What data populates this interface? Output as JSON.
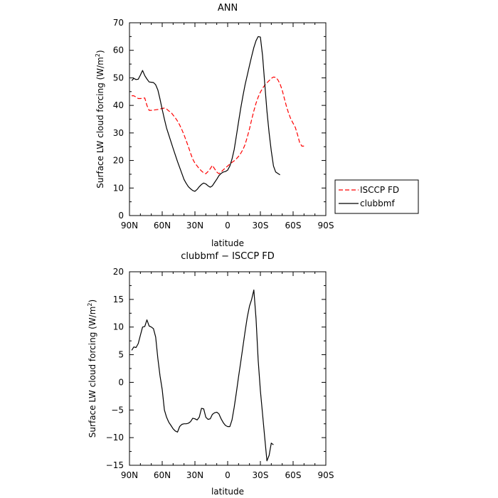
{
  "chart_data": [
    {
      "type": "line",
      "title": "ANN",
      "xlabel": "latitude",
      "ylabel": "Surface LW cloud forcing (W/m",
      "ylabel_sup": "2",
      "ylabel_close": ")",
      "xlim": [
        90,
        -90
      ],
      "ylim": [
        0,
        70
      ],
      "xticks": [
        90,
        60,
        30,
        0,
        -30,
        -60,
        -90
      ],
      "xtick_labels": [
        "90N",
        "60N",
        "30N",
        "0",
        "30S",
        "60S",
        "90S"
      ],
      "yticks": [
        0,
        10,
        20,
        30,
        40,
        50,
        60,
        70
      ],
      "ytick_labels": [
        "0",
        "10",
        "20",
        "30",
        "40",
        "50",
        "60",
        "70"
      ],
      "legend": {
        "position": "right"
      },
      "series": [
        {
          "name": "ISCCP FD",
          "color": "#ff0000",
          "dash": true,
          "points": [
            [
              88,
              43.5
            ],
            [
              86,
              43.5
            ],
            [
              84,
              43
            ],
            [
              82,
              42.5
            ],
            [
              80,
              42.5
            ],
            [
              78,
              42.6
            ],
            [
              76,
              42.7
            ],
            [
              74,
              40
            ],
            [
              72,
              38.2
            ],
            [
              70,
              38.2
            ],
            [
              68,
              38.3
            ],
            [
              66,
              38.4
            ],
            [
              64,
              38.5
            ],
            [
              62,
              38.7
            ],
            [
              60,
              38.9
            ],
            [
              58,
              39
            ],
            [
              56,
              38.7
            ],
            [
              54,
              38
            ],
            [
              52,
              37.5
            ],
            [
              50,
              36.5
            ],
            [
              48,
              35.5
            ],
            [
              46,
              34.3
            ],
            [
              44,
              32.9
            ],
            [
              42,
              31.2
            ],
            [
              40,
              29.3
            ],
            [
              38,
              27.2
            ],
            [
              36,
              25
            ],
            [
              34,
              22.6
            ],
            [
              32,
              20.5
            ],
            [
              30,
              19
            ],
            [
              28,
              18
            ],
            [
              26,
              17
            ],
            [
              24,
              16.2
            ],
            [
              22,
              15.5
            ],
            [
              20,
              15.2
            ],
            [
              18,
              16
            ],
            [
              16,
              17
            ],
            [
              14,
              18.2
            ],
            [
              12,
              17
            ],
            [
              10,
              15.8
            ],
            [
              8,
              15.2
            ],
            [
              6,
              15.8
            ],
            [
              4,
              16.6
            ],
            [
              2,
              17.3
            ],
            [
              0,
              18
            ],
            [
              -2,
              18.7
            ],
            [
              -4,
              19.3
            ],
            [
              -6,
              19.9
            ],
            [
              -8,
              20.6
            ],
            [
              -10,
              21.5
            ],
            [
              -12,
              22.6
            ],
            [
              -14,
              24
            ],
            [
              -16,
              25.8
            ],
            [
              -18,
              28.5
            ],
            [
              -20,
              31.5
            ],
            [
              -22,
              34.8
            ],
            [
              -24,
              38
            ],
            [
              -26,
              40.8
            ],
            [
              -28,
              43
            ],
            [
              -30,
              44.8
            ],
            [
              -32,
              46.2
            ],
            [
              -34,
              47.3
            ],
            [
              -36,
              48.2
            ],
            [
              -38,
              49
            ],
            [
              -40,
              49.8
            ],
            [
              -42,
              50.3
            ],
            [
              -44,
              50.2
            ],
            [
              -46,
              49.3
            ],
            [
              -48,
              47.8
            ],
            [
              -50,
              45.5
            ],
            [
              -52,
              42.5
            ],
            [
              -54,
              39.5
            ],
            [
              -56,
              37
            ],
            [
              -58,
              35
            ],
            [
              -60,
              33.5
            ],
            [
              -62,
              32
            ],
            [
              -64,
              29.5
            ],
            [
              -66,
              26.5
            ],
            [
              -68,
              25.2
            ],
            [
              -70,
              25.2
            ]
          ]
        },
        {
          "name": "clubbmf",
          "color": "#000000",
          "dash": false,
          "points": [
            [
              88,
              49
            ],
            [
              86,
              49.8
            ],
            [
              84,
              49.4
            ],
            [
              82,
              49.5
            ],
            [
              80,
              51
            ],
            [
              78,
              52.7
            ],
            [
              76,
              50.8
            ],
            [
              74,
              49.6
            ],
            [
              72,
              48.5
            ],
            [
              70,
              48.4
            ],
            [
              68,
              48.3
            ],
            [
              66,
              47.5
            ],
            [
              64,
              45.6
            ],
            [
              62,
              42.3
            ],
            [
              60,
              38.5
            ],
            [
              58,
              35
            ],
            [
              56,
              31.8
            ],
            [
              54,
              29.3
            ],
            [
              52,
              26.8
            ],
            [
              50,
              24.4
            ],
            [
              48,
              22
            ],
            [
              46,
              19.6
            ],
            [
              44,
              17.5
            ],
            [
              42,
              15.3
            ],
            [
              40,
              13.1
            ],
            [
              38,
              11.7
            ],
            [
              36,
              10.5
            ],
            [
              34,
              9.7
            ],
            [
              32,
              9.1
            ],
            [
              30,
              8.8
            ],
            [
              28,
              9.5
            ],
            [
              26,
              10.5
            ],
            [
              24,
              11.3
            ],
            [
              22,
              11.8
            ],
            [
              20,
              11.5
            ],
            [
              18,
              10.8
            ],
            [
              16,
              10.3
            ],
            [
              14,
              10.8
            ],
            [
              12,
              12
            ],
            [
              10,
              13.2
            ],
            [
              8,
              14.5
            ],
            [
              6,
              15.3
            ],
            [
              4,
              15.8
            ],
            [
              2,
              16
            ],
            [
              0,
              16.5
            ],
            [
              -2,
              18
            ],
            [
              -4,
              20.5
            ],
            [
              -6,
              24
            ],
            [
              -8,
              29
            ],
            [
              -10,
              34
            ],
            [
              -12,
              39
            ],
            [
              -14,
              43.5
            ],
            [
              -16,
              47.5
            ],
            [
              -18,
              51
            ],
            [
              -20,
              54.5
            ],
            [
              -22,
              57.8
            ],
            [
              -24,
              61
            ],
            [
              -26,
              63.5
            ],
            [
              -28,
              65
            ],
            [
              -30,
              64.8
            ],
            [
              -32,
              58
            ],
            [
              -34,
              48
            ],
            [
              -36,
              38
            ],
            [
              -38,
              30
            ],
            [
              -40,
              23.5
            ],
            [
              -42,
              18
            ],
            [
              -44,
              15.8
            ],
            [
              -46,
              15.3
            ],
            [
              -48,
              14.8
            ]
          ]
        }
      ]
    },
    {
      "type": "line",
      "title": "clubbmf − ISCCP FD",
      "xlabel": "latitude",
      "ylabel": "Surface LW cloud forcing (W/m",
      "ylabel_sup": "2",
      "ylabel_close": ")",
      "xlim": [
        90,
        -90
      ],
      "ylim": [
        -15,
        20
      ],
      "xticks": [
        90,
        60,
        30,
        0,
        -30,
        -60,
        -90
      ],
      "xtick_labels": [
        "90N",
        "60N",
        "30N",
        "0",
        "30S",
        "60S",
        "90S"
      ],
      "yticks": [
        -15,
        -10,
        -5,
        0,
        5,
        10,
        15,
        20
      ],
      "ytick_labels": [
        "−15",
        "−10",
        "−5",
        "0",
        "5",
        "10",
        "15",
        "20"
      ],
      "series": [
        {
          "name": "",
          "color": "#000000",
          "dash": false,
          "points": [
            [
              88,
              5.8
            ],
            [
              86,
              6.4
            ],
            [
              84,
              6.3
            ],
            [
              82,
              7
            ],
            [
              80,
              8.5
            ],
            [
              78,
              10
            ],
            [
              76,
              10.1
            ],
            [
              74,
              11.3
            ],
            [
              72,
              10.2
            ],
            [
              70,
              10
            ],
            [
              68,
              9.7
            ],
            [
              66,
              8.2
            ],
            [
              64,
              4.3
            ],
            [
              62,
              1.2
            ],
            [
              60,
              -1.3
            ],
            [
              58,
              -5
            ],
            [
              56,
              -6.3
            ],
            [
              54,
              -7.2
            ],
            [
              52,
              -7.8
            ],
            [
              50,
              -8.4
            ],
            [
              48,
              -8.8
            ],
            [
              46,
              -9
            ],
            [
              44,
              -8
            ],
            [
              42,
              -7.6
            ],
            [
              40,
              -7.5
            ],
            [
              38,
              -7.5
            ],
            [
              36,
              -7.4
            ],
            [
              34,
              -7.1
            ],
            [
              32,
              -6.5
            ],
            [
              30,
              -6.6
            ],
            [
              28,
              -6.8
            ],
            [
              26,
              -6.3
            ],
            [
              24,
              -4.7
            ],
            [
              22,
              -4.8
            ],
            [
              20,
              -6.3
            ],
            [
              18,
              -6.7
            ],
            [
              16,
              -6.6
            ],
            [
              14,
              -5.8
            ],
            [
              12,
              -5.5
            ],
            [
              10,
              -5.4
            ],
            [
              8,
              -5.7
            ],
            [
              6,
              -6.6
            ],
            [
              4,
              -7.3
            ],
            [
              2,
              -7.8
            ],
            [
              0,
              -8
            ],
            [
              -2,
              -8
            ],
            [
              -4,
              -6.8
            ],
            [
              -6,
              -4.5
            ],
            [
              -8,
              -1.8
            ],
            [
              -10,
              1
            ],
            [
              -12,
              3.7
            ],
            [
              -14,
              6.5
            ],
            [
              -16,
              9.2
            ],
            [
              -18,
              11.8
            ],
            [
              -20,
              13.8
            ],
            [
              -22,
              15
            ],
            [
              -24,
              16.7
            ],
            [
              -26,
              11.5
            ],
            [
              -28,
              4
            ],
            [
              -30,
              -1.5
            ],
            [
              -32,
              -5.8
            ],
            [
              -34,
              -10
            ],
            [
              -36,
              -14.2
            ],
            [
              -38,
              -13.2
            ],
            [
              -40,
              -11
            ],
            [
              -42,
              -11.3
            ]
          ]
        }
      ]
    }
  ]
}
